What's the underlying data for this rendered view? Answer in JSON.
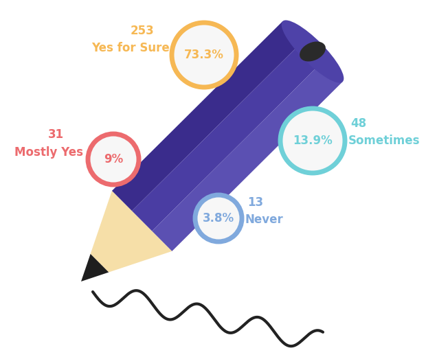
{
  "chart_data": {
    "type": "infographic",
    "categories": [
      "Yes for Sure",
      "Mostly Yes",
      "Sometimes",
      "Never"
    ],
    "values": [
      253,
      31,
      48,
      13
    ],
    "percent_labels": [
      "73.3%",
      "9%",
      "13.9%",
      "3.8%"
    ],
    "colors": [
      "#f6b854",
      "#ec6b6e",
      "#6fd0d8",
      "#80a9dd"
    ]
  }
}
